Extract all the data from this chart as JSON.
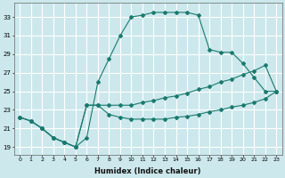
{
  "xlabel": "Humidex (Indice chaleur)",
  "bg_color": "#cce8ec",
  "line_color": "#1a7a6e",
  "grid_color": "#ffffff",
  "xlim": [
    -0.5,
    23.5
  ],
  "ylim": [
    18.2,
    34.5
  ],
  "xticks": [
    0,
    1,
    2,
    3,
    4,
    5,
    6,
    7,
    8,
    9,
    10,
    11,
    12,
    13,
    14,
    15,
    16,
    17,
    18,
    19,
    20,
    21,
    22,
    23
  ],
  "yticks": [
    19,
    21,
    23,
    25,
    27,
    29,
    31,
    33
  ],
  "line1_x": [
    0,
    1,
    2,
    3,
    4,
    5,
    6,
    7,
    8,
    9,
    10,
    11,
    12,
    13,
    14,
    15,
    16,
    17,
    18,
    19,
    20,
    21,
    22,
    23
  ],
  "line1_y": [
    22.2,
    21.8,
    21.0,
    20.0,
    19.5,
    19.0,
    20.0,
    26.0,
    28.5,
    31.0,
    33.0,
    33.2,
    33.5,
    33.5,
    33.5,
    33.5,
    33.2,
    29.5,
    29.2,
    29.2,
    28.0,
    26.5,
    25.0,
    25.0
  ],
  "line2_x": [
    0,
    1,
    2,
    3,
    4,
    5,
    6,
    7,
    8,
    9,
    10,
    11,
    12,
    13,
    14,
    15,
    16,
    17,
    18,
    19,
    20,
    21,
    22,
    23
  ],
  "line2_y": [
    22.2,
    21.8,
    21.0,
    20.0,
    19.5,
    19.0,
    23.5,
    23.5,
    23.5,
    23.5,
    23.5,
    23.8,
    24.0,
    24.3,
    24.5,
    24.8,
    25.2,
    25.5,
    26.0,
    26.3,
    26.8,
    27.2,
    27.8,
    25.0
  ],
  "line3_x": [
    0,
    1,
    2,
    3,
    4,
    5,
    6,
    7,
    8,
    9,
    10,
    11,
    12,
    13,
    14,
    15,
    16,
    17,
    18,
    19,
    20,
    21,
    22,
    23
  ],
  "line3_y": [
    22.2,
    21.8,
    21.0,
    20.0,
    19.5,
    19.0,
    23.5,
    23.5,
    22.5,
    22.2,
    22.0,
    22.0,
    22.0,
    22.0,
    22.2,
    22.3,
    22.5,
    22.8,
    23.0,
    23.3,
    23.5,
    23.8,
    24.2,
    25.0
  ]
}
